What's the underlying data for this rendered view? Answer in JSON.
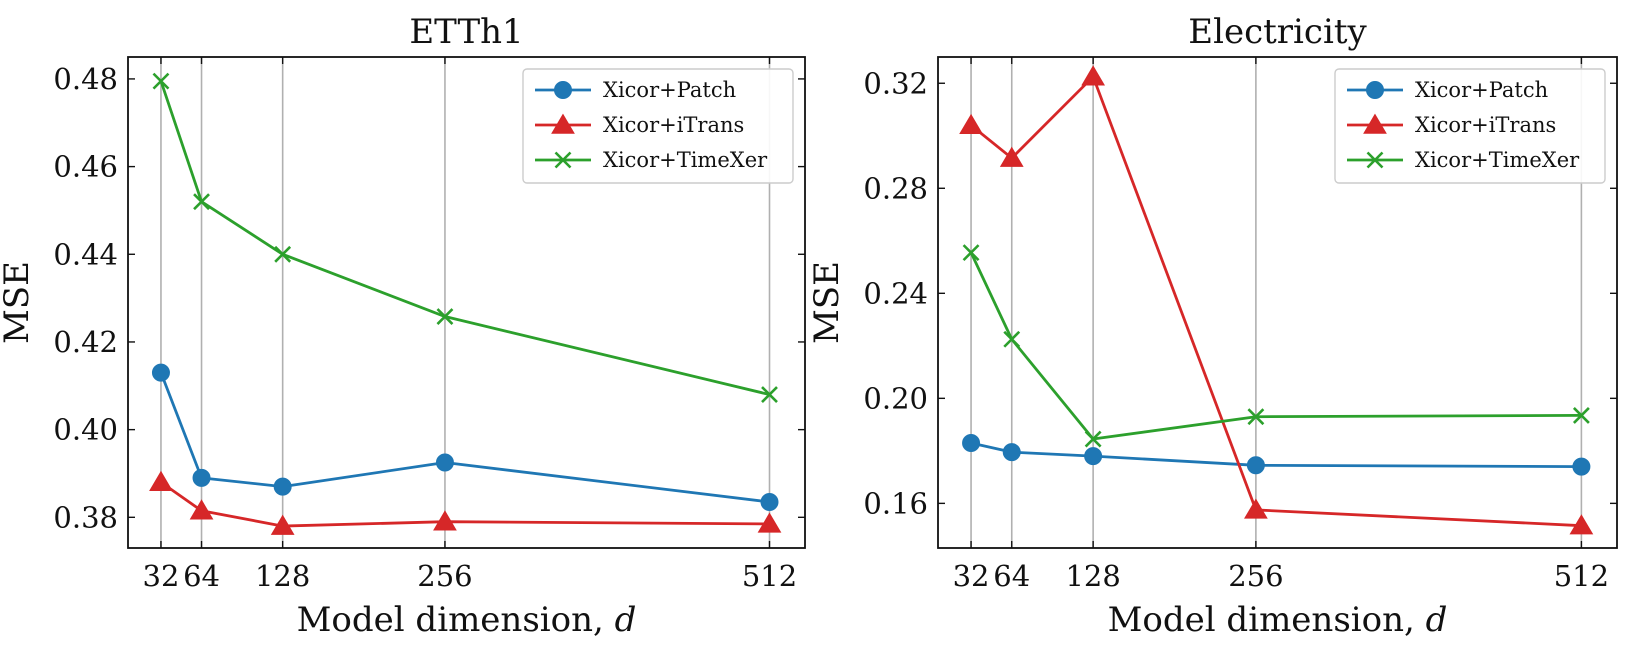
{
  "chart_data": [
    {
      "type": "line",
      "title": "ETTh1",
      "xlabel": "Model dimension, ",
      "xlabel_var": "d",
      "ylabel": "MSE",
      "x": [
        32,
        64,
        128,
        256,
        512
      ],
      "xticks": [
        "32",
        "64",
        "128",
        "256",
        "512"
      ],
      "xlim": [
        6,
        540
      ],
      "ylim": [
        0.373,
        0.485
      ],
      "yticks": [
        0.38,
        0.4,
        0.42,
        0.44,
        0.46,
        0.48
      ],
      "ytick_labels": [
        "0.38",
        "0.40",
        "0.42",
        "0.44",
        "0.46",
        "0.48"
      ],
      "grid": "vertical",
      "legend": "top-right",
      "series": [
        {
          "name": "Xicor+Patch",
          "marker": "circle",
          "color": "#1f77b4",
          "values": [
            0.413,
            0.389,
            0.387,
            0.3925,
            0.3835
          ]
        },
        {
          "name": "Xicor+iTrans",
          "marker": "triangle",
          "color": "#d62728",
          "values": [
            0.388,
            0.3815,
            0.378,
            0.379,
            0.3785
          ]
        },
        {
          "name": "Xicor+TimeXer",
          "marker": "x",
          "color": "#2ca02c",
          "values": [
            0.4795,
            0.452,
            0.44,
            0.4258,
            0.408
          ]
        }
      ]
    },
    {
      "type": "line",
      "title": "Electricity",
      "xlabel": "Model dimension, ",
      "xlabel_var": "d",
      "ylabel": "MSE",
      "x": [
        32,
        64,
        128,
        256,
        512
      ],
      "xticks": [
        "32",
        "64",
        "128",
        "256",
        "512"
      ],
      "xlim": [
        6,
        540
      ],
      "ylim": [
        0.143,
        0.33
      ],
      "yticks": [
        0.16,
        0.2,
        0.24,
        0.28,
        0.32
      ],
      "ytick_labels": [
        "0.16",
        "0.20",
        "0.24",
        "0.28",
        "0.32"
      ],
      "grid": "vertical",
      "legend": "top-right",
      "series": [
        {
          "name": "Xicor+Patch",
          "marker": "circle",
          "color": "#1f77b4",
          "values": [
            0.183,
            0.1795,
            0.178,
            0.1745,
            0.174
          ]
        },
        {
          "name": "Xicor+iTrans",
          "marker": "triangle",
          "color": "#d62728",
          "values": [
            0.304,
            0.2915,
            0.3225,
            0.1575,
            0.1515
          ]
        },
        {
          "name": "Xicor+TimeXer",
          "marker": "x",
          "color": "#2ca02c",
          "values": [
            0.2555,
            0.2225,
            0.1845,
            0.193,
            0.1935
          ]
        }
      ]
    }
  ]
}
